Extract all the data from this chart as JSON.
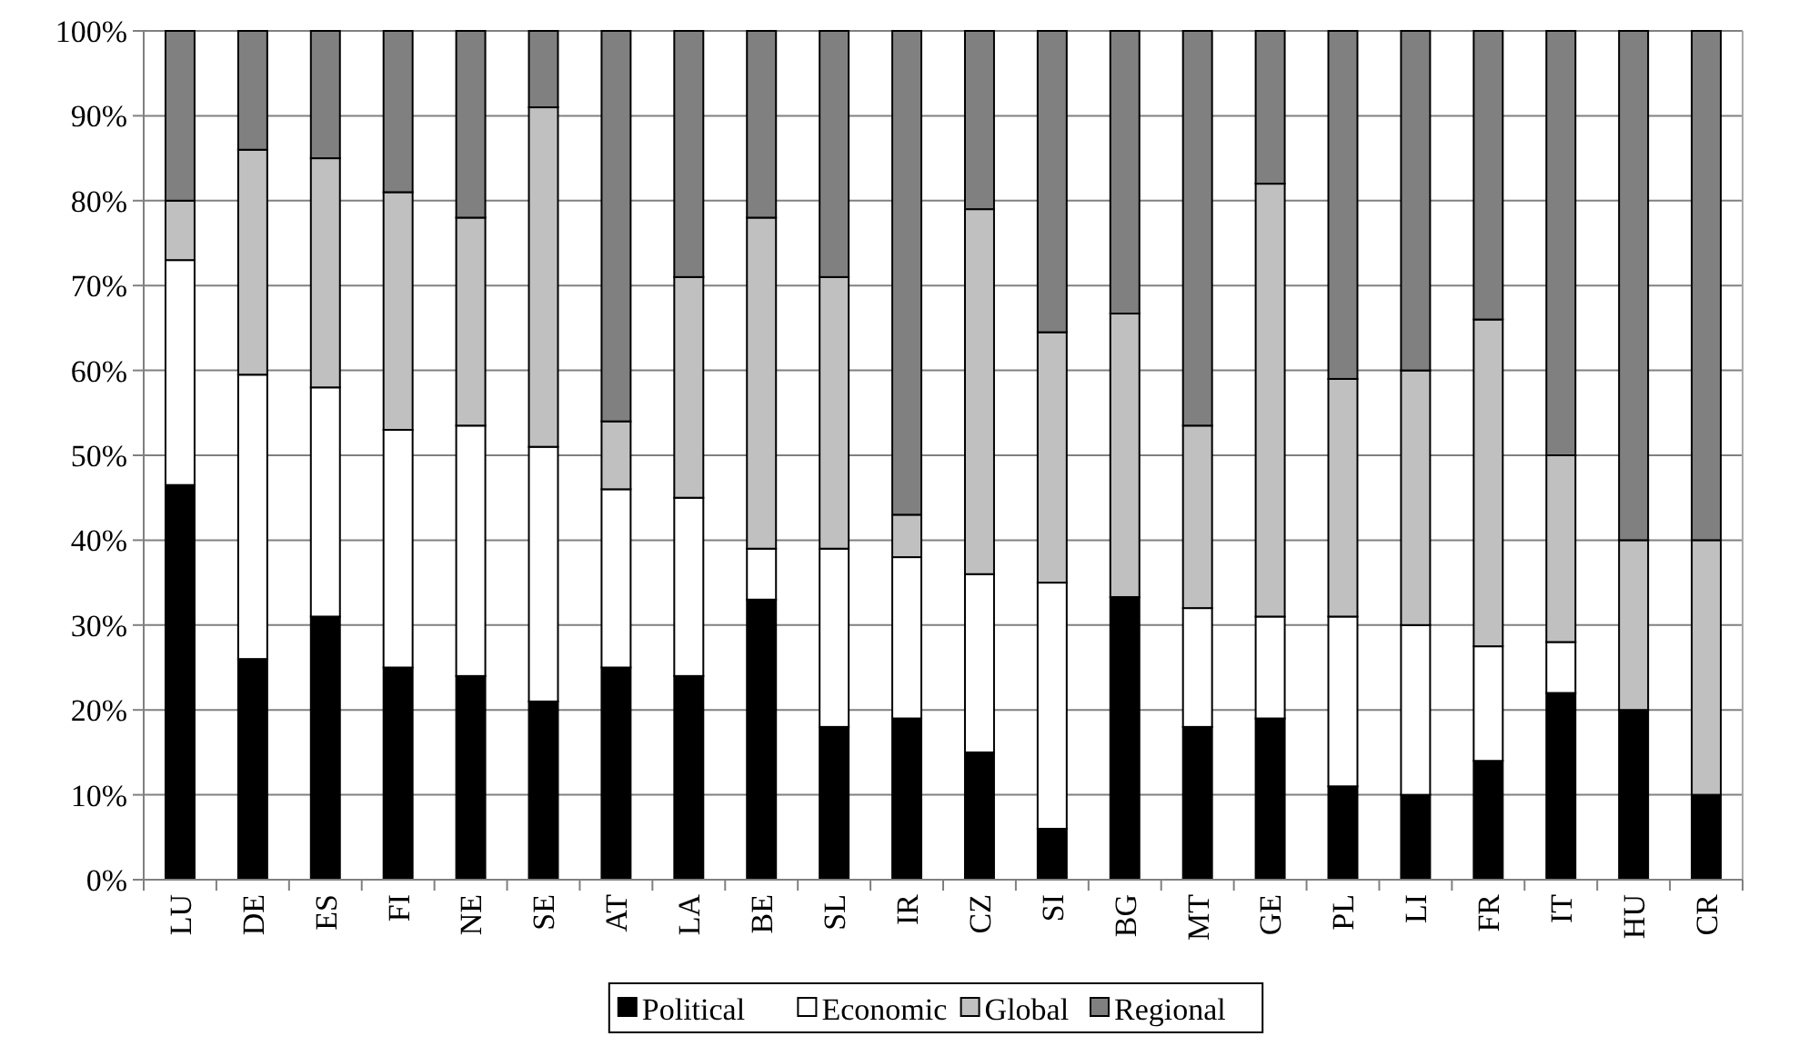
{
  "chart_data": {
    "type": "bar",
    "stacked": true,
    "categories": [
      "LU",
      "DE",
      "ES",
      "FI",
      "NE",
      "SE",
      "AT",
      "LA",
      "BE",
      "SL",
      "IR",
      "CZ",
      "SI",
      "BG",
      "MT",
      "GE",
      "PL",
      "LI",
      "FR",
      "IT",
      "HU",
      "CR"
    ],
    "series": [
      {
        "name": "Political",
        "color": "#000000",
        "values": [
          46.5,
          26,
          31,
          25,
          24,
          21,
          25,
          24,
          33,
          18,
          19,
          15,
          6,
          33.3,
          18,
          19,
          11,
          10,
          14,
          22,
          20,
          10
        ]
      },
      {
        "name": "Economic",
        "color": "#ffffff",
        "values": [
          26.5,
          33.5,
          27,
          28,
          29.5,
          30,
          21,
          21,
          6,
          21,
          19,
          21,
          29,
          0,
          14,
          12,
          20,
          20,
          13.5,
          6,
          0,
          0
        ]
      },
      {
        "name": "Global",
        "color": "#c0c0c0",
        "values": [
          7,
          26.5,
          27,
          28,
          24.5,
          40,
          8,
          26,
          39,
          32,
          5,
          43,
          29.5,
          33.4,
          21.5,
          51,
          28,
          30,
          38.5,
          22,
          20,
          30
        ]
      },
      {
        "name": "Regional",
        "color": "#808080",
        "values": [
          20,
          14,
          15,
          19,
          22,
          9,
          46,
          29,
          22,
          29,
          57,
          21,
          35.5,
          33.3,
          46.5,
          18,
          41,
          40,
          34,
          50,
          60,
          60
        ]
      }
    ],
    "ylim": [
      0,
      100
    ],
    "yticks": [
      {
        "value": 0,
        "label": "0%"
      },
      {
        "value": 10,
        "label": "10%"
      },
      {
        "value": 20,
        "label": "20%"
      },
      {
        "value": 30,
        "label": "30%"
      },
      {
        "value": 40,
        "label": "40%"
      },
      {
        "value": 50,
        "label": "50%"
      },
      {
        "value": 60,
        "label": "60%"
      },
      {
        "value": 70,
        "label": "70%"
      },
      {
        "value": 80,
        "label": "80%"
      },
      {
        "value": 90,
        "label": "90%"
      },
      {
        "value": 100,
        "label": "100%"
      }
    ],
    "grid": "y",
    "legend": "bottom"
  }
}
